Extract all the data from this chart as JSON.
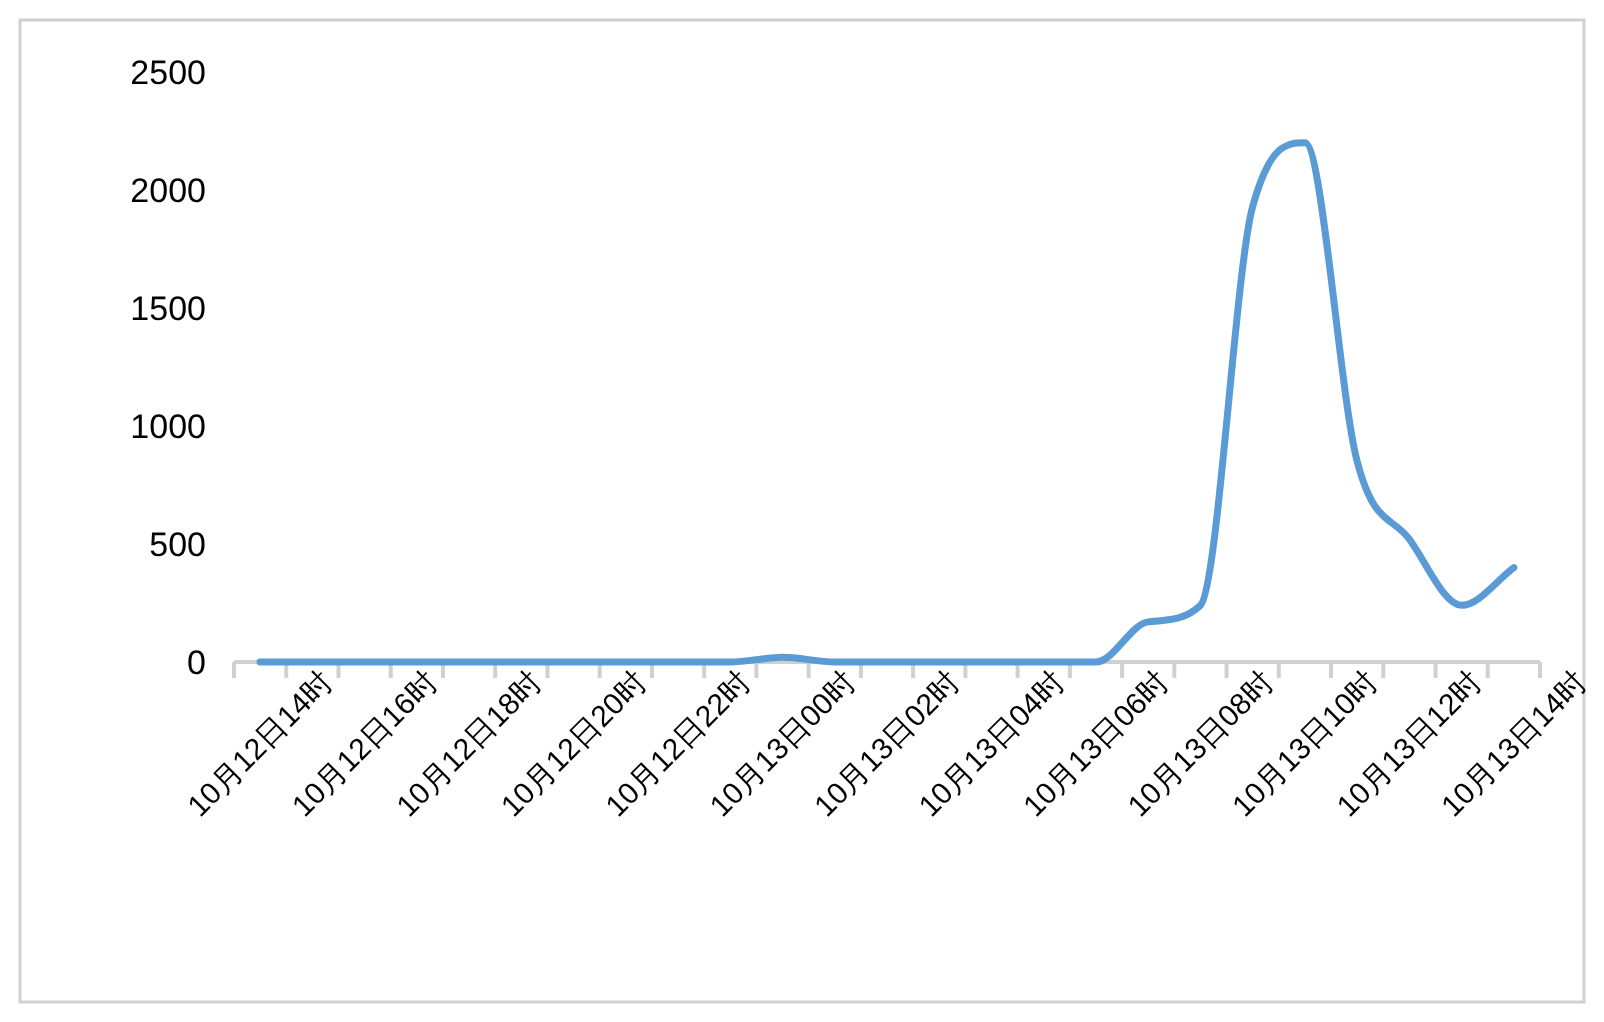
{
  "chart_data": {
    "type": "line",
    "categories": [
      "10月12日14时",
      null,
      "10月12日16时",
      null,
      "10月12日18时",
      null,
      "10月12日20时",
      null,
      "10月12日22时",
      null,
      "10月13日00时",
      null,
      "10月13日02时",
      null,
      "10月13日04时",
      null,
      "10月13日06时",
      null,
      "10月13日08时",
      null,
      "10月13日10时",
      null,
      "10月13日12时",
      null,
      "10月13日14时"
    ],
    "series": [
      {
        "color": "#5b9bd5",
        "values": [
          0,
          0,
          0,
          0,
          0,
          0,
          0,
          0,
          0,
          0,
          20,
          0,
          0,
          0,
          0,
          0,
          0,
          170,
          240,
          1930,
          2200,
          850,
          520,
          240,
          400
        ]
      }
    ],
    "ylim": [
      0,
      2500
    ],
    "yticks": [
      0,
      500,
      1000,
      1500,
      2000,
      2500
    ],
    "grid": false,
    "line_style": "solid"
  }
}
